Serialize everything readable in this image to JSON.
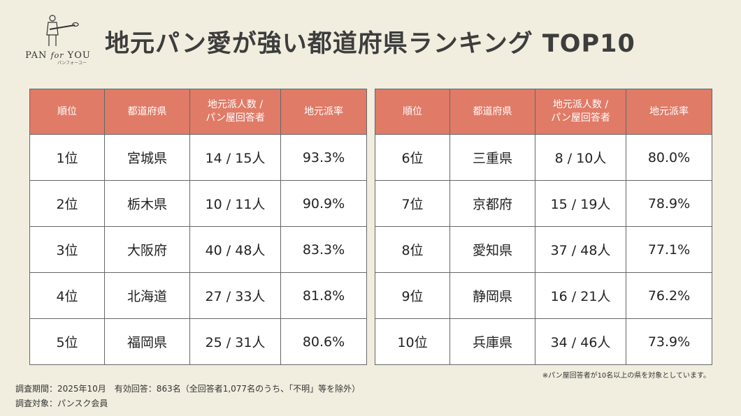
{
  "logo": {
    "brand_left": "PAN",
    "brand_mid": "for",
    "brand_right": "YOU",
    "kana": "パンフォーユー"
  },
  "title": "地元パン愛が強い都道府県ランキング TOP10",
  "headers": [
    "順位",
    "都道府県",
    "地元派人数 /\nパン屋回答者",
    "地元派率"
  ],
  "left_rows": [
    {
      "rank": "1位",
      "pref": "宮城県",
      "count": "14 / 15人",
      "rate": "93.3%"
    },
    {
      "rank": "2位",
      "pref": "栃木県",
      "count": "10 / 11人",
      "rate": "90.9%"
    },
    {
      "rank": "3位",
      "pref": "大阪府",
      "count": "40 / 48人",
      "rate": "83.3%"
    },
    {
      "rank": "4位",
      "pref": "北海道",
      "count": "27 / 33人",
      "rate": "81.8%"
    },
    {
      "rank": "5位",
      "pref": "福岡県",
      "count": "25 / 31人",
      "rate": "80.6%"
    }
  ],
  "right_rows": [
    {
      "rank": "6位",
      "pref": "三重県",
      "count": "8 / 10人",
      "rate": "80.0%"
    },
    {
      "rank": "7位",
      "pref": "京都府",
      "count": "15 / 19人",
      "rate": "78.9%"
    },
    {
      "rank": "8位",
      "pref": "愛知県",
      "count": "37 / 48人",
      "rate": "77.1%"
    },
    {
      "rank": "9位",
      "pref": "静岡県",
      "count": "16 / 21人",
      "rate": "76.2%"
    },
    {
      "rank": "10位",
      "pref": "兵庫県",
      "count": "34 / 46人",
      "rate": "73.9%"
    }
  ],
  "note": "※パン屋回答者が10名以上の県を対象としています。",
  "footer": {
    "line1": "調査期間：2025年10月　有効回答：863名（全回答者1,077名のうち、「不明」等を除外）",
    "line2": "調査対象：パンスク会員"
  }
}
